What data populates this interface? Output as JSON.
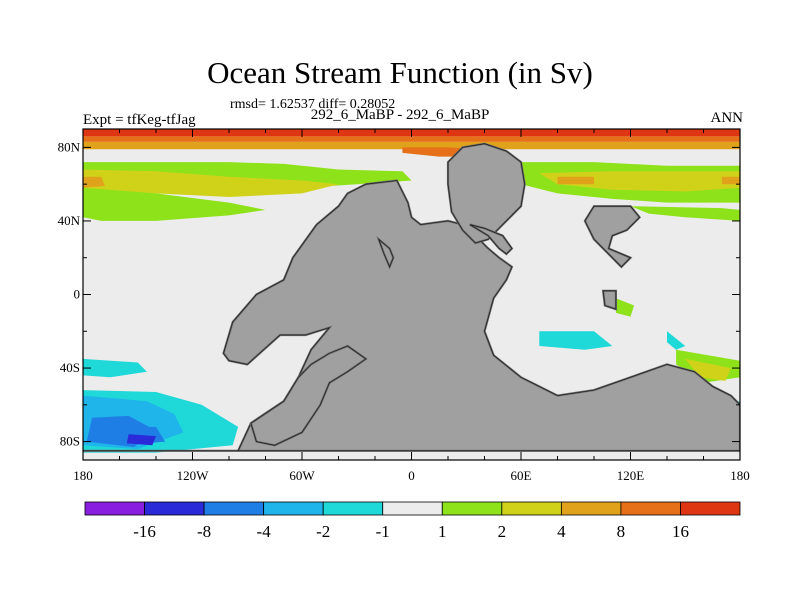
{
  "header": {
    "title": "Ocean Stream Function (in Sv)",
    "stats": "rmsd= 1.62537 diff= 0.28052",
    "experiment": "Expt = tfKeg-tfJag",
    "case": "292_6_MaBP - 292_6_MaBP",
    "season": "ANN"
  },
  "chart_data": {
    "type": "heatmap",
    "title": "Ocean Stream Function (in Sv)",
    "subtitle": "rmsd= 1.62537 diff= 0.28052",
    "xlim": [
      -180,
      180
    ],
    "ylim": [
      -90,
      90
    ],
    "x_ticks": [
      {
        "value": -180,
        "label": "180"
      },
      {
        "value": -120,
        "label": "120W"
      },
      {
        "value": -60,
        "label": "60W"
      },
      {
        "value": 0,
        "label": "0"
      },
      {
        "value": 60,
        "label": "60E"
      },
      {
        "value": 120,
        "label": "120E"
      },
      {
        "value": 180,
        "label": "180"
      }
    ],
    "y_ticks": [
      {
        "value": 80,
        "label": "80N"
      },
      {
        "value": 40,
        "label": "40N"
      },
      {
        "value": 0,
        "label": "0"
      },
      {
        "value": -40,
        "label": "40S"
      },
      {
        "value": -80,
        "label": "80S"
      }
    ],
    "colorbar": {
      "colors": [
        "#8a1ee0",
        "#2a2ad8",
        "#1f7ee6",
        "#1fb4ea",
        "#1fd8d8",
        "#ececec",
        "#8ee21a",
        "#d0d21a",
        "#e0a21a",
        "#e6701a",
        "#de3612"
      ],
      "labels": [
        "-16",
        "-8",
        "-4",
        "-2",
        "-1",
        "1",
        "2",
        "4",
        "8",
        "16"
      ]
    },
    "land_color": "#a0a0a0",
    "regions": [
      {
        "level": "16",
        "color": "#de3612",
        "points": [
          [
            -180,
            90
          ],
          [
            180,
            90
          ],
          [
            180,
            86
          ],
          [
            -180,
            86
          ]
        ]
      },
      {
        "level": "8",
        "color": "#e6701a",
        "points": [
          [
            -180,
            86
          ],
          [
            180,
            86
          ],
          [
            180,
            83
          ],
          [
            -180,
            83
          ]
        ]
      },
      {
        "level": "4",
        "color": "#e0a21a",
        "points": [
          [
            -180,
            83
          ],
          [
            180,
            83
          ],
          [
            180,
            79
          ],
          [
            -180,
            79
          ]
        ]
      },
      {
        "level": "8",
        "color": "#e6701a",
        "points": [
          [
            -5,
            80
          ],
          [
            20,
            80
          ],
          [
            40,
            79
          ],
          [
            50,
            77
          ],
          [
            40,
            75
          ],
          [
            15,
            75
          ],
          [
            -5,
            77
          ]
        ]
      },
      {
        "level": "2",
        "color": "#8ee21a",
        "points": [
          [
            -180,
            72
          ],
          [
            -100,
            72
          ],
          [
            -70,
            71
          ],
          [
            -40,
            68
          ],
          [
            -5,
            67
          ],
          [
            0,
            62
          ],
          [
            -30,
            60
          ],
          [
            -60,
            58
          ],
          [
            -100,
            56
          ],
          [
            -140,
            57
          ],
          [
            -180,
            58
          ]
        ]
      },
      {
        "level": "4",
        "color": "#d0d21a",
        "points": [
          [
            -180,
            68
          ],
          [
            -140,
            67
          ],
          [
            -100,
            64
          ],
          [
            -60,
            62
          ],
          [
            -40,
            60
          ],
          [
            -60,
            55
          ],
          [
            -100,
            53
          ],
          [
            -140,
            55
          ],
          [
            -180,
            57
          ]
        ]
      },
      {
        "level": "8",
        "color": "#e0a21a",
        "points": [
          [
            -180,
            64
          ],
          [
            -170,
            64
          ],
          [
            -168,
            59
          ],
          [
            -180,
            58
          ]
        ]
      },
      {
        "level": "2",
        "color": "#8ee21a",
        "points": [
          [
            -180,
            58
          ],
          [
            -140,
            55
          ],
          [
            -100,
            50
          ],
          [
            -80,
            46
          ],
          [
            -100,
            43
          ],
          [
            -140,
            40
          ],
          [
            -170,
            40
          ],
          [
            -180,
            42
          ]
        ]
      },
      {
        "level": "2",
        "color": "#8ee21a",
        "points": [
          [
            60,
            72
          ],
          [
            100,
            72
          ],
          [
            140,
            70
          ],
          [
            180,
            70
          ],
          [
            180,
            50
          ],
          [
            140,
            50
          ],
          [
            110,
            52
          ],
          [
            80,
            55
          ],
          [
            60,
            60
          ]
        ]
      },
      {
        "level": "4",
        "color": "#d0d21a",
        "points": [
          [
            70,
            66
          ],
          [
            110,
            67
          ],
          [
            180,
            67
          ],
          [
            180,
            58
          ],
          [
            150,
            56
          ],
          [
            110,
            57
          ],
          [
            80,
            60
          ]
        ]
      },
      {
        "level": "8",
        "color": "#e0a21a",
        "points": [
          [
            80,
            64
          ],
          [
            100,
            64
          ],
          [
            100,
            60
          ],
          [
            80,
            60
          ]
        ]
      },
      {
        "level": "8",
        "color": "#e0a21a",
        "points": [
          [
            170,
            64
          ],
          [
            180,
            64
          ],
          [
            180,
            60
          ],
          [
            170,
            60
          ]
        ]
      },
      {
        "level": "2",
        "color": "#8ee21a",
        "points": [
          [
            120,
            48
          ],
          [
            170,
            47
          ],
          [
            180,
            46
          ],
          [
            180,
            40
          ],
          [
            150,
            42
          ],
          [
            130,
            44
          ]
        ]
      },
      {
        "level": "2",
        "color": "#8ee21a",
        "points": [
          [
            112,
            -2
          ],
          [
            122,
            -6
          ],
          [
            120,
            -12
          ],
          [
            112,
            -10
          ]
        ]
      },
      {
        "level": "2",
        "color": "#8ee21a",
        "points": [
          [
            145,
            -30
          ],
          [
            180,
            -36
          ],
          [
            180,
            -45
          ],
          [
            160,
            -48
          ],
          [
            145,
            -38
          ]
        ]
      },
      {
        "level": "4",
        "color": "#d0d21a",
        "points": [
          [
            150,
            -35
          ],
          [
            175,
            -40
          ],
          [
            172,
            -47
          ],
          [
            158,
            -45
          ]
        ]
      },
      {
        "level": "-1",
        "color": "#1fd8d8",
        "points": [
          [
            70,
            -20
          ],
          [
            100,
            -20
          ],
          [
            110,
            -28
          ],
          [
            95,
            -30
          ],
          [
            70,
            -28
          ]
        ]
      },
      {
        "level": "-1",
        "color": "#1fd8d8",
        "points": [
          [
            140,
            -20
          ],
          [
            150,
            -28
          ],
          [
            145,
            -30
          ],
          [
            140,
            -26
          ]
        ]
      },
      {
        "level": "-1",
        "color": "#1fd8d8",
        "points": [
          [
            -180,
            -35
          ],
          [
            -150,
            -37
          ],
          [
            -145,
            -42
          ],
          [
            -165,
            -45
          ],
          [
            -180,
            -44
          ]
        ]
      },
      {
        "level": "-1",
        "color": "#1fd8d8",
        "points": [
          [
            -180,
            -52
          ],
          [
            -140,
            -53
          ],
          [
            -115,
            -60
          ],
          [
            -95,
            -72
          ],
          [
            -98,
            -82
          ],
          [
            -140,
            -86
          ],
          [
            -180,
            -86
          ]
        ]
      },
      {
        "level": "-2",
        "color": "#1fb4ea",
        "points": [
          [
            -180,
            -55
          ],
          [
            -145,
            -58
          ],
          [
            -130,
            -65
          ],
          [
            -125,
            -75
          ],
          [
            -150,
            -84
          ],
          [
            -180,
            -82
          ]
        ]
      },
      {
        "level": "-4",
        "color": "#1f7ee6",
        "points": [
          [
            -175,
            -67
          ],
          [
            -155,
            -66
          ],
          [
            -140,
            -74
          ],
          [
            -152,
            -83
          ],
          [
            -178,
            -80
          ]
        ]
      },
      {
        "level": "-4",
        "color": "#1f7ee6",
        "points": [
          [
            -160,
            -72
          ],
          [
            -140,
            -72
          ],
          [
            -135,
            -80
          ],
          [
            -160,
            -82
          ]
        ]
      },
      {
        "level": "-8",
        "color": "#2a2ad8",
        "points": [
          [
            -155,
            -76
          ],
          [
            -140,
            -77
          ],
          [
            -142,
            -82
          ],
          [
            -156,
            -81
          ]
        ]
      },
      {
        "level": "-1",
        "color": "#1fd8d8",
        "points": [
          [
            162,
            -62
          ],
          [
            175,
            -58
          ],
          [
            180,
            -58
          ],
          [
            180,
            -64
          ],
          [
            170,
            -66
          ]
        ]
      }
    ],
    "land": [
      {
        "points": [
          [
            -103,
            -32
          ],
          [
            -98,
            -15
          ],
          [
            -85,
            0
          ],
          [
            -70,
            8
          ],
          [
            -65,
            20
          ],
          [
            -52,
            38
          ],
          [
            -40,
            48
          ],
          [
            -35,
            55
          ],
          [
            -25,
            60
          ],
          [
            -8,
            62
          ],
          [
            -2,
            50
          ],
          [
            0,
            42
          ],
          [
            5,
            38
          ],
          [
            20,
            40
          ],
          [
            28,
            38
          ],
          [
            35,
            32
          ],
          [
            42,
            25
          ],
          [
            48,
            20
          ],
          [
            55,
            15
          ],
          [
            52,
            8
          ],
          [
            45,
            -2
          ],
          [
            40,
            -20
          ],
          [
            45,
            -33
          ],
          [
            60,
            -45
          ],
          [
            80,
            -55
          ],
          [
            100,
            -52
          ],
          [
            120,
            -45
          ],
          [
            140,
            -38
          ],
          [
            155,
            -42
          ],
          [
            165,
            -50
          ],
          [
            175,
            -55
          ],
          [
            180,
            -60
          ],
          [
            180,
            -85
          ],
          [
            -180,
            -85
          ],
          [
            -95,
            -85
          ],
          [
            -88,
            -70
          ],
          [
            -70,
            -58
          ],
          [
            -62,
            -45
          ],
          [
            -55,
            -30
          ],
          [
            -45,
            -18
          ],
          [
            -58,
            -22
          ],
          [
            -72,
            -22
          ],
          [
            -90,
            -38
          ],
          [
            -100,
            -36
          ]
        ]
      },
      {
        "points": [
          [
            -88,
            -70
          ],
          [
            -70,
            -58
          ],
          [
            -62,
            -45
          ],
          [
            -55,
            -38
          ],
          [
            -45,
            -32
          ],
          [
            -35,
            -28
          ],
          [
            -25,
            -35
          ],
          [
            -35,
            -42
          ],
          [
            -45,
            -48
          ],
          [
            -50,
            -60
          ],
          [
            -60,
            -75
          ],
          [
            -75,
            -82
          ],
          [
            -85,
            -80
          ]
        ]
      },
      {
        "points": [
          [
            -18,
            30
          ],
          [
            -12,
            25
          ],
          [
            -10,
            20
          ],
          [
            -12,
            15
          ],
          [
            -15,
            22
          ]
        ]
      },
      {
        "points": [
          [
            20,
            72
          ],
          [
            28,
            80
          ],
          [
            40,
            82
          ],
          [
            52,
            78
          ],
          [
            60,
            72
          ],
          [
            62,
            60
          ],
          [
            60,
            48
          ],
          [
            50,
            38
          ],
          [
            42,
            30
          ],
          [
            35,
            28
          ],
          [
            28,
            35
          ],
          [
            22,
            45
          ],
          [
            20,
            60
          ]
        ]
      },
      {
        "points": [
          [
            32,
            38
          ],
          [
            42,
            32
          ],
          [
            48,
            25
          ],
          [
            52,
            22
          ],
          [
            55,
            25
          ],
          [
            50,
            32
          ],
          [
            40,
            36
          ]
        ]
      },
      {
        "points": [
          [
            100,
            48
          ],
          [
            120,
            48
          ],
          [
            125,
            42
          ],
          [
            118,
            35
          ],
          [
            110,
            32
          ],
          [
            108,
            25
          ],
          [
            120,
            20
          ],
          [
            115,
            15
          ],
          [
            100,
            30
          ],
          [
            95,
            40
          ]
        ]
      },
      {
        "points": [
          [
            105,
            2
          ],
          [
            112,
            2
          ],
          [
            112,
            -8
          ],
          [
            106,
            -6
          ]
        ]
      }
    ]
  }
}
